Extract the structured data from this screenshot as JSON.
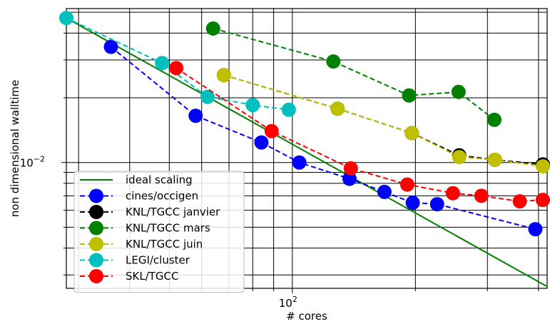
{
  "chart_data": {
    "type": "line",
    "xlabel": "# cores",
    "ylabel": "non dimensional walltime",
    "xscale": "log",
    "yscale": "log",
    "xlim": [
      28,
      420
    ],
    "ylim": [
      0.0026,
      0.052
    ],
    "grid": true,
    "legend_position": "lower-left",
    "x_tick_labels": [
      {
        "value": 100,
        "base": "10",
        "exp": "2"
      }
    ],
    "y_tick_labels": [
      {
        "value": 0.01,
        "base": "10",
        "exp": "−2"
      }
    ],
    "series": [
      {
        "name": "ideal scaling",
        "color": "#008000",
        "style": "solid",
        "marker": false,
        "x": [
          28,
          420
        ],
        "y": [
          0.047,
          0.00265
        ]
      },
      {
        "name": "cines/occigen",
        "color": "#0000ff",
        "style": "dashed",
        "marker": true,
        "x": [
          36,
          58,
          84,
          104,
          138,
          168,
          197,
          226,
          393
        ],
        "y": [
          0.0345,
          0.0165,
          0.0124,
          0.01,
          0.0084,
          0.0073,
          0.0065,
          0.0064,
          0.0049
        ]
      },
      {
        "name": "KNL/TGCC janvier",
        "color": "#000000",
        "style": "dashed",
        "marker": true,
        "x": [
          68,
          129,
          196,
          256,
          313,
          410
        ],
        "y": [
          0.0255,
          0.0178,
          0.0137,
          0.0108,
          0.0103,
          0.0098
        ]
      },
      {
        "name": "KNL/TGCC mars",
        "color": "#008000",
        "style": "dashed",
        "marker": true,
        "x": [
          64,
          126,
          193,
          255,
          312
        ],
        "y": [
          0.042,
          0.0295,
          0.0205,
          0.0213,
          0.0158
        ]
      },
      {
        "name": "KNL/TGCC juin",
        "color": "#bfbf00",
        "style": "dashed",
        "marker": true,
        "x": [
          68,
          129,
          196,
          256,
          313,
          410
        ],
        "y": [
          0.0255,
          0.0178,
          0.0137,
          0.0106,
          0.0103,
          0.0096
        ]
      },
      {
        "name": "LEGI/cluster",
        "color": "#00bfbf",
        "style": "dashed",
        "marker": true,
        "x": [
          28,
          48,
          62,
          80,
          98
        ],
        "y": [
          0.047,
          0.029,
          0.0202,
          0.0185,
          0.0176
        ]
      },
      {
        "name": "SKL/TGCC",
        "color": "#ff0000",
        "style": "dashed",
        "marker": true,
        "x": [
          52,
          89,
          139,
          191,
          247,
          290,
          360,
          410
        ],
        "y": [
          0.0275,
          0.014,
          0.0094,
          0.0079,
          0.0072,
          0.007,
          0.0066,
          0.0067
        ]
      }
    ]
  }
}
